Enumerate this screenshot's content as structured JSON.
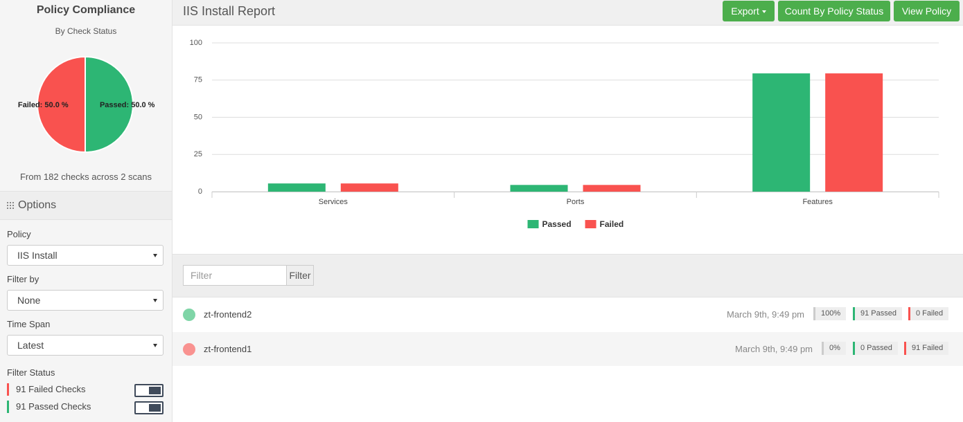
{
  "sidebar": {
    "title": "Policy Compliance",
    "subtitle": "By Check Status",
    "summary": "From 182 checks across 2 scans",
    "options_title": "Options",
    "fields": [
      {
        "label": "Policy",
        "value": "IIS Install"
      },
      {
        "label": "Filter by",
        "value": "None"
      },
      {
        "label": "Time Span",
        "value": "Latest"
      }
    ],
    "filter_status_label": "Filter Status",
    "status_items": [
      "91 Failed Checks",
      "91 Passed Checks"
    ]
  },
  "header": {
    "title": "IIS Install Report",
    "buttons": [
      "Export",
      "Count By Policy Status",
      "View Policy"
    ]
  },
  "chart_data": [
    {
      "type": "pie",
      "values": [
        50.0,
        50.0
      ],
      "value_labels": [
        "Passed: 50.0 %",
        "Failed: 50.0 %"
      ],
      "colors": [
        "#2db674",
        "#f9524f"
      ]
    },
    {
      "type": "bar",
      "categories": [
        "Services",
        "Ports",
        "Features"
      ],
      "series": [
        {
          "name": "Passed",
          "color": "#2db674",
          "values": [
            5.5,
            4.5,
            79.5
          ]
        },
        {
          "name": "Failed",
          "color": "#f9524f",
          "values": [
            5.5,
            4.5,
            79.5
          ]
        }
      ],
      "ylim": [
        0,
        100
      ],
      "yticks": [
        0,
        25,
        50,
        75,
        100
      ],
      "grid": true,
      "legend": "bottom"
    }
  ],
  "filter": {
    "placeholder": "Filter",
    "button": "Filter"
  },
  "scans": [
    {
      "name": "zt-frontend2",
      "date": "March 9th, 9:49 pm",
      "percent": "100%",
      "passed": "91 Passed",
      "failed": "0 Failed"
    },
    {
      "name": "zt-frontend1",
      "date": "March 9th, 9:49 pm",
      "percent": "0%",
      "passed": "0 Passed",
      "failed": "91 Failed"
    }
  ]
}
